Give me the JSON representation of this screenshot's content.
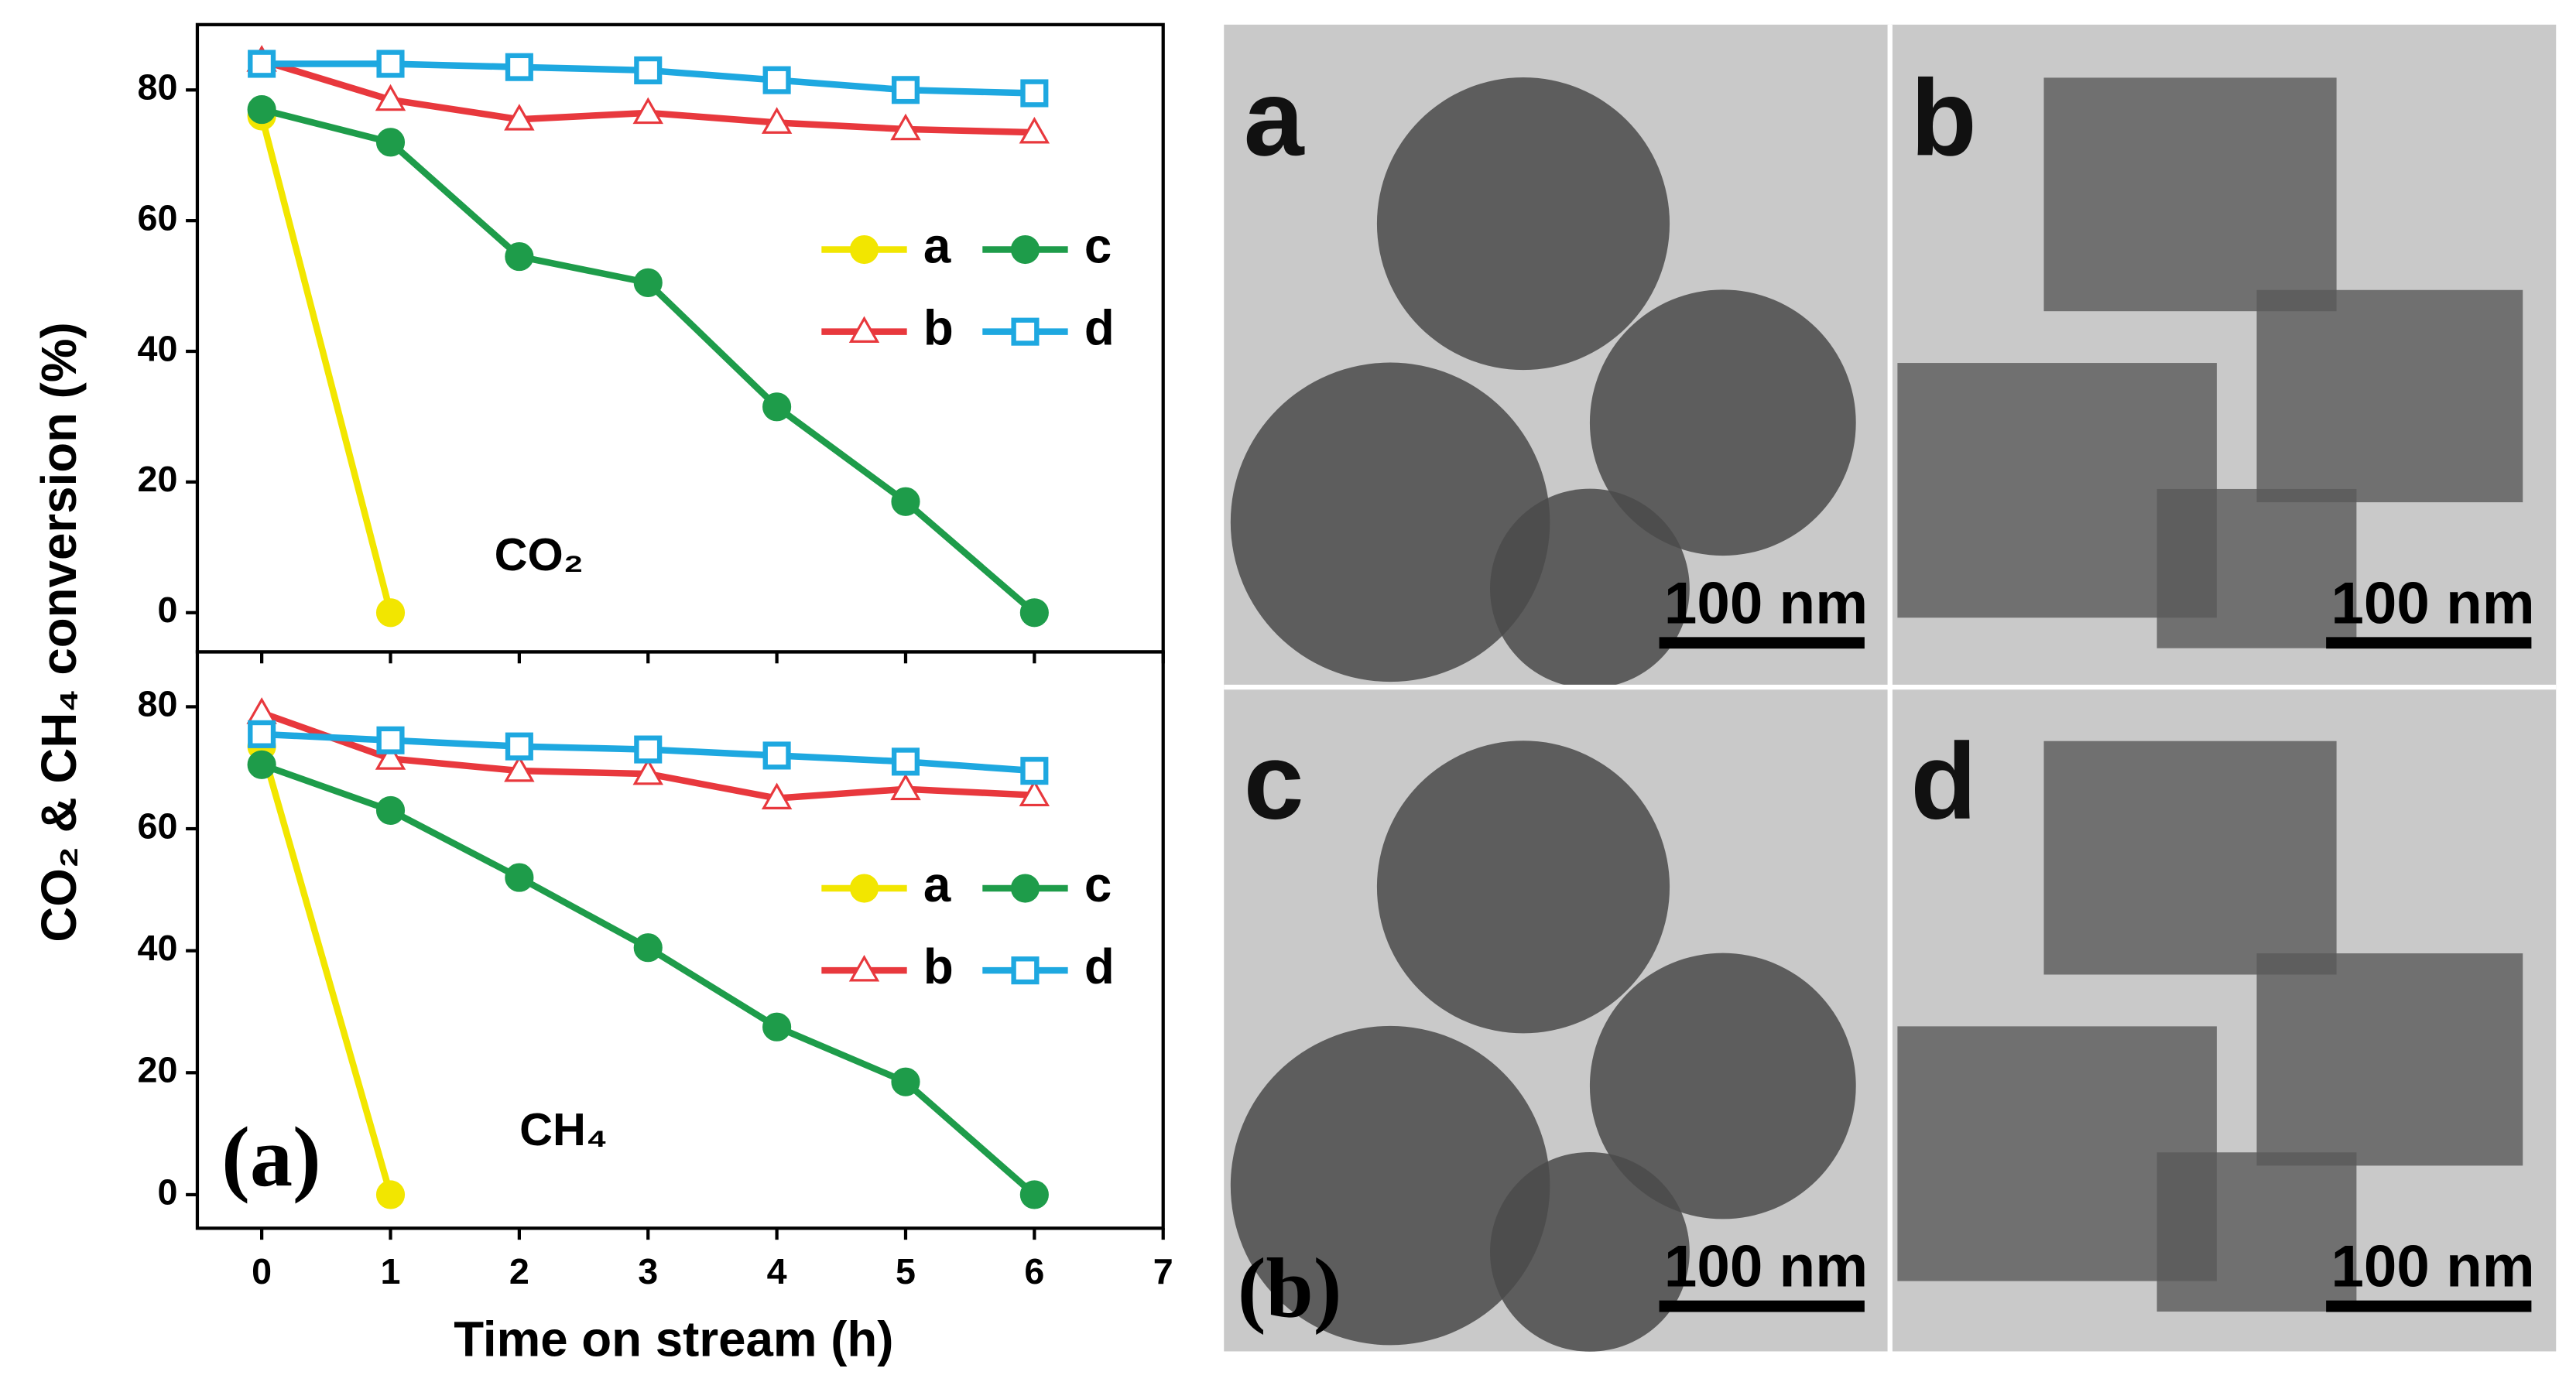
{
  "chart_data": [
    {
      "type": "line",
      "annotation": "CO₂",
      "ylabel": "CO₂ & CH₄ conversion (%)",
      "x": [
        0,
        1,
        2,
        3,
        4,
        5,
        6
      ],
      "xlim": [
        -0.5,
        7
      ],
      "xticks": [
        0,
        1,
        2,
        3,
        4,
        5,
        6,
        7
      ],
      "ylim": [
        -6,
        90
      ],
      "yticks": [
        0,
        20,
        40,
        60,
        80
      ],
      "series": [
        {
          "name": "a",
          "color": "#f2e600",
          "marker": "circle",
          "values": [
            76,
            0,
            null,
            null,
            null,
            null,
            null
          ]
        },
        {
          "name": "b",
          "color": "#e8383d",
          "marker": "triangle",
          "values": [
            84.5,
            78.5,
            75.5,
            76.5,
            75,
            74,
            73.5
          ]
        },
        {
          "name": "c",
          "color": "#1e9c4a",
          "marker": "circle",
          "values": [
            77,
            72,
            54.5,
            50.5,
            31.5,
            17,
            0
          ]
        },
        {
          "name": "d",
          "color": "#1ea8e0",
          "marker": "square",
          "values": [
            84,
            84,
            83.5,
            83,
            81.5,
            80,
            79.5
          ]
        }
      ]
    },
    {
      "type": "line",
      "annotation": "CH₄",
      "panel": "(a)",
      "xlabel": "Time on stream (h)",
      "x": [
        0,
        1,
        2,
        3,
        4,
        5,
        6
      ],
      "xlim": [
        -0.5,
        7
      ],
      "xticks": [
        0,
        1,
        2,
        3,
        4,
        5,
        6,
        7
      ],
      "ylim": [
        -5.5,
        89
      ],
      "yticks": [
        0,
        20,
        40,
        60,
        80
      ],
      "series": [
        {
          "name": "a",
          "color": "#f2e600",
          "marker": "circle",
          "values": [
            73.5,
            0,
            null,
            null,
            null,
            null,
            null
          ]
        },
        {
          "name": "b",
          "color": "#e8383d",
          "marker": "triangle",
          "values": [
            79,
            71.5,
            69.5,
            69,
            65,
            66.5,
            65.5
          ]
        },
        {
          "name": "c",
          "color": "#1e9c4a",
          "marker": "circle",
          "values": [
            70.5,
            63,
            52,
            40.5,
            27.5,
            18.5,
            0
          ]
        },
        {
          "name": "d",
          "color": "#1ea8e0",
          "marker": "square",
          "values": [
            75.5,
            74.5,
            73.5,
            73,
            72,
            71,
            69.5
          ]
        }
      ]
    }
  ],
  "images": {
    "label": "(b)",
    "panels": [
      {
        "label": "a",
        "scale": "100 nm"
      },
      {
        "label": "b",
        "scale": "100 nm"
      },
      {
        "label": "c",
        "scale": "100 nm"
      },
      {
        "label": "d",
        "scale": "100 nm"
      }
    ]
  }
}
